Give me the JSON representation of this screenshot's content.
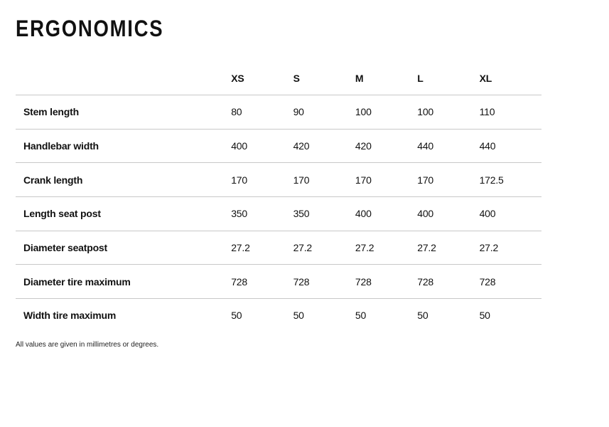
{
  "title": "ERGONOMICS",
  "columns": [
    "XS",
    "S",
    "M",
    "L",
    "XL"
  ],
  "rows": [
    {
      "label": "Stem length",
      "values": [
        "80",
        "90",
        "100",
        "100",
        "110"
      ]
    },
    {
      "label": "Handlebar width",
      "values": [
        "400",
        "420",
        "420",
        "440",
        "440"
      ]
    },
    {
      "label": "Crank length",
      "values": [
        "170",
        "170",
        "170",
        "170",
        "172.5"
      ]
    },
    {
      "label": "Length seat post",
      "values": [
        "350",
        "350",
        "400",
        "400",
        "400"
      ]
    },
    {
      "label": "Diameter seatpost",
      "values": [
        "27.2",
        "27.2",
        "27.2",
        "27.2",
        "27.2"
      ]
    },
    {
      "label": "Diameter tire maximum",
      "values": [
        "728",
        "728",
        "728",
        "728",
        "728"
      ]
    },
    {
      "label": "Width tire maximum",
      "values": [
        "50",
        "50",
        "50",
        "50",
        "50"
      ]
    }
  ],
  "note": "All values are given in millimetres or degrees."
}
